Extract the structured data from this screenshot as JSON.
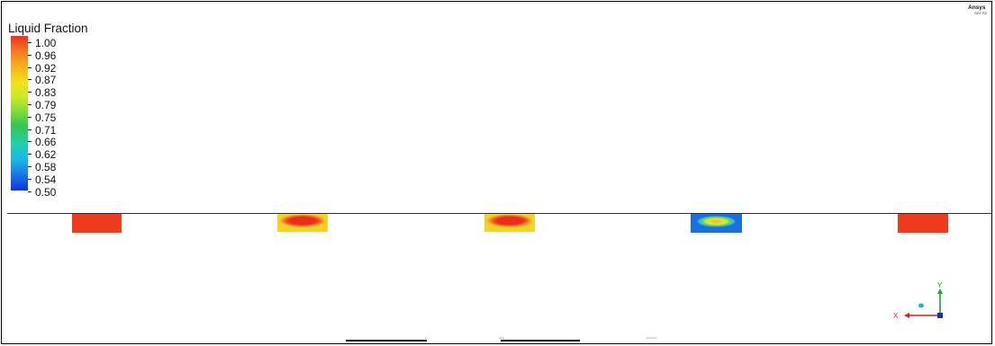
{
  "legend": {
    "title": "Liquid Fraction",
    "ticks": [
      "1.00",
      "0.96",
      "0.92",
      "0.87",
      "0.83",
      "0.79",
      "0.75",
      "0.71",
      "0.66",
      "0.62",
      "0.58",
      "0.54",
      "0.50"
    ]
  },
  "brand": {
    "name": "Ansys",
    "sub": "SDT R2"
  },
  "blocks": [
    {
      "state": "fully-molten",
      "core_color": "#ef3a1c",
      "edge_color": "#ef3a1c"
    },
    {
      "state": "mostly-molten",
      "core_color": "#ec2b1f",
      "edge_color": "#f6d128"
    },
    {
      "state": "mostly-molten",
      "core_color": "#ec2b1f",
      "edge_color": "#f6d128"
    },
    {
      "state": "partially-molten",
      "core_color": "#f1e22a",
      "edge_color": "#2bc6e6"
    },
    {
      "state": "fully-molten",
      "core_color": "#ef3a1c",
      "edge_color": "#ef3a1c"
    }
  ],
  "scale": {
    "labels": [
      "0",
      "0.02",
      "0.04 (m)"
    ]
  },
  "triad": {
    "x_label": "X",
    "y_label": "Y",
    "x_color": "#d01f1f",
    "y_color": "#22a12c"
  }
}
